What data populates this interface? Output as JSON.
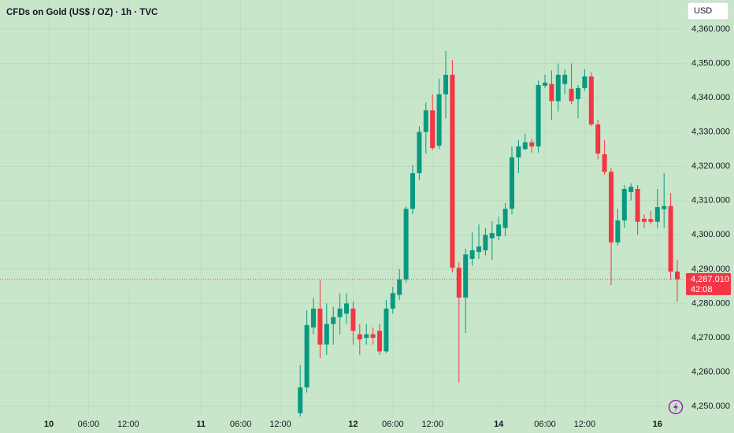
{
  "chart_data": {
    "type": "candlestick",
    "title": "CFDs on Gold (US$ / OZ) · 1h · TVC",
    "currency": "USD",
    "countdown": "42:08",
    "last_price": {
      "value": 4287.01,
      "label": "4,287.010"
    },
    "up_color": "#089981",
    "down_color": "#f23645",
    "grid": true,
    "ylim": [
      4246.8,
      4368.5
    ],
    "yticks": [
      {
        "value": 4250,
        "label": "4,250.000"
      },
      {
        "value": 4260,
        "label": "4,260.000"
      },
      {
        "value": 4270,
        "label": "4,270.000"
      },
      {
        "value": 4280,
        "label": "4,280.000"
      },
      {
        "value": 4290,
        "label": "4,290.000"
      },
      {
        "value": 4300,
        "label": "4,300.000"
      },
      {
        "value": 4310,
        "label": "4,310.000"
      },
      {
        "value": 4320,
        "label": "4,320.000"
      },
      {
        "value": 4330,
        "label": "4,330.000"
      },
      {
        "value": 4340,
        "label": "4,340.000"
      },
      {
        "value": 4350,
        "label": "4,350.000"
      },
      {
        "value": 4360,
        "label": "4,360.000"
      }
    ],
    "categories": [
      "10",
      null,
      null,
      null,
      null,
      null,
      "06:00",
      null,
      null,
      null,
      null,
      null,
      "12:00",
      null,
      null,
      null,
      null,
      null,
      null,
      null,
      null,
      null,
      null,
      "11",
      null,
      null,
      null,
      null,
      null,
      "06:00",
      null,
      null,
      null,
      null,
      null,
      "12:00",
      null,
      null,
      null,
      null,
      null,
      null,
      null,
      null,
      null,
      null,
      "12",
      null,
      null,
      null,
      null,
      null,
      "06:00",
      null,
      null,
      null,
      null,
      null,
      "12:00",
      null,
      null,
      null,
      null,
      null,
      null,
      null,
      null,
      null,
      "14",
      null,
      null,
      null,
      null,
      null,
      null,
      "06:00",
      null,
      null,
      null,
      null,
      null,
      "12:00",
      null,
      null,
      null,
      null,
      null,
      null,
      null,
      null,
      null,
      null,
      "16",
      null,
      null,
      null
    ],
    "open": [
      null,
      null,
      null,
      null,
      null,
      null,
      null,
      null,
      null,
      null,
      null,
      null,
      null,
      null,
      null,
      null,
      null,
      null,
      null,
      null,
      null,
      null,
      null,
      null,
      null,
      null,
      null,
      null,
      null,
      null,
      null,
      null,
      null,
      null,
      null,
      null,
      null,
      null,
      4248,
      4255.5,
      4273,
      4278.5,
      4268,
      4274,
      4276,
      4277,
      4278.5,
      4271,
      4270,
      4271,
      4272,
      4266,
      4278.5,
      4282.5,
      4287,
      4307.6,
      4318,
      4330,
      4336.3,
      4326,
      4341,
      4346.7,
      4290.4,
      4281.7,
      4293,
      4295,
      4295.5,
      4299,
      4299.6,
      4302,
      4307.6,
      4322.6,
      4325,
      4327,
      4325.8,
      4343.5,
      4344,
      4339,
      4344,
      4342.6,
      4339.6,
      4342.8,
      4346.2,
      4332.2,
      4323.5,
      4318.4,
      4297.8,
      4304.2,
      4312.5,
      4313.4,
      4304.7,
      4304.6,
      4303.8,
      4307.5,
      4308.4,
      4289.3
    ],
    "high": [
      null,
      null,
      null,
      null,
      null,
      null,
      null,
      null,
      null,
      null,
      null,
      null,
      null,
      null,
      null,
      null,
      null,
      null,
      null,
      null,
      null,
      null,
      null,
      null,
      null,
      null,
      null,
      null,
      null,
      null,
      null,
      null,
      null,
      null,
      null,
      null,
      null,
      null,
      4262,
      4278,
      4281.6,
      4286.7,
      4280,
      4279,
      4283,
      4283,
      4280.5,
      4274,
      4274,
      4273,
      4274,
      4281,
      4284.8,
      4290,
      4308.3,
      4320.3,
      4331.7,
      4338.6,
      4341,
      4345.5,
      4353.6,
      4351,
      4292,
      4296,
      4300.7,
      4303,
      4302,
      4304,
      4305.3,
      4309.3,
      4325.8,
      4327.6,
      4329.5,
      4328,
      4345,
      4346.7,
      4348,
      4350,
      4348.3,
      4350,
      4343.7,
      4348.3,
      4347.4,
      4333.6,
      4327.6,
      4319.5,
      4307.6,
      4314.5,
      4315,
      4314.5,
      4306,
      4307,
      4313.4,
      4318,
      4312.2,
      4292.7
    ],
    "low": [
      null,
      null,
      null,
      null,
      null,
      null,
      null,
      null,
      null,
      null,
      null,
      null,
      null,
      null,
      null,
      null,
      null,
      null,
      null,
      null,
      null,
      null,
      null,
      null,
      null,
      null,
      null,
      null,
      null,
      null,
      null,
      null,
      null,
      null,
      null,
      null,
      null,
      null,
      4247,
      4254,
      4271,
      4264,
      4265,
      4268,
      4271,
      4274,
      4268,
      4265,
      4268,
      4268,
      4265,
      4265.5,
      4277,
      4281,
      4286,
      4306,
      4316,
      4323.7,
      4324.8,
      4325,
      4334,
      4289,
      4256.9,
      4271.4,
      4291,
      4293,
      4294,
      4292.7,
      4298.5,
      4299.6,
      4306,
      4318,
      4324.8,
      4324,
      4324,
      4342.8,
      4333.6,
      4336,
      4341,
      4338.2,
      4334,
      4342,
      4331.7,
      4322,
      4317.5,
      4285.4,
      4296.9,
      4302,
      4310,
      4300,
      4302,
      4303,
      4302,
      4302,
      4287,
      4280.5
    ],
    "close": [
      null,
      null,
      null,
      null,
      null,
      null,
      null,
      null,
      null,
      null,
      null,
      null,
      null,
      null,
      null,
      null,
      null,
      null,
      null,
      null,
      null,
      null,
      null,
      null,
      null,
      null,
      null,
      null,
      null,
      null,
      null,
      null,
      null,
      null,
      null,
      null,
      null,
      null,
      4255.5,
      4273.7,
      4278.5,
      4268,
      4274,
      4276,
      4278.5,
      4280,
      4272,
      4269.5,
      4271,
      4270,
      4266,
      4278.5,
      4283,
      4287,
      4307.6,
      4318,
      4330,
      4336.3,
      4325.3,
      4341,
      4346.7,
      4290.4,
      4281.7,
      4294.3,
      4295.5,
      4296.6,
      4300,
      4300.5,
      4303,
      4307.6,
      4322.6,
      4325.8,
      4327,
      4325.8,
      4343.7,
      4344.4,
      4339,
      4346.7,
      4346.7,
      4339,
      4342.8,
      4346.2,
      4332.2,
      4323.7,
      4318.4,
      4297.8,
      4304.2,
      4313.4,
      4314,
      4303.8,
      4303.8,
      4303.8,
      4308.1,
      4308.4,
      4289.3,
      4287.01
    ]
  }
}
